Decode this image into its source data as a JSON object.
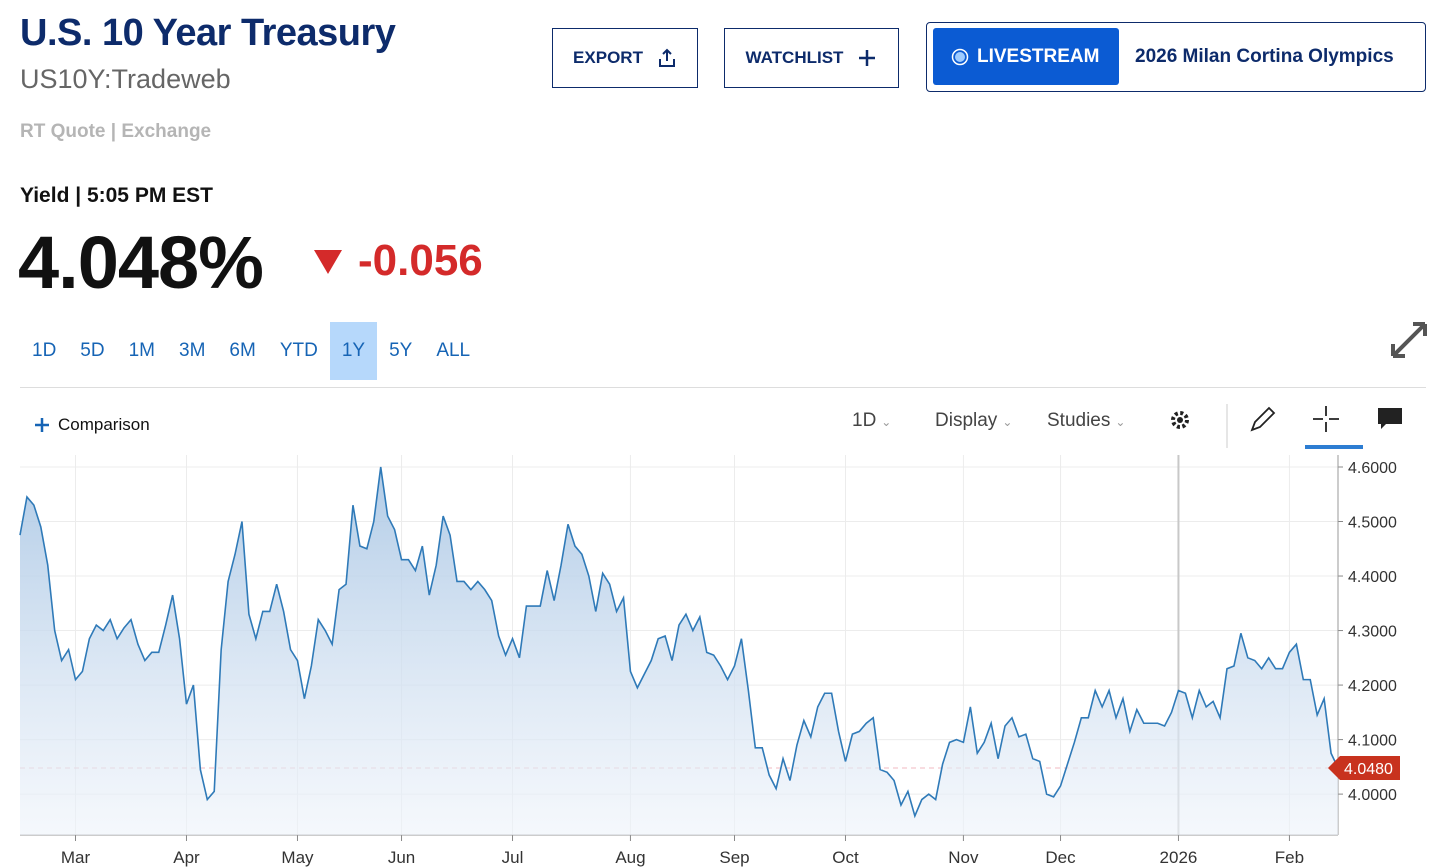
{
  "header": {
    "title": "U.S. 10 Year Treasury",
    "symbol": "US10Y:Tradeweb",
    "quote_source": "RT Quote | Exchange",
    "export": "EXPORT",
    "watchlist": "WATCHLIST",
    "livestream": "LIVESTREAM",
    "livestream_title": "2026 Milan Cortina Olympics"
  },
  "quote": {
    "label": "Yield | 5:05 PM EST",
    "price": "4.048%",
    "change": "-0.056"
  },
  "range_tabs": {
    "items": [
      "1D",
      "5D",
      "1M",
      "3M",
      "6M",
      "YTD",
      "1Y",
      "5Y",
      "ALL"
    ],
    "active_index": 6
  },
  "toolbar": {
    "comparison": "Comparison",
    "interval": "1D",
    "display": "Display",
    "studies": "Studies"
  },
  "chart_data": {
    "type": "area",
    "color": "#2f7ab8",
    "values": [
      4.475,
      4.545,
      4.53,
      4.49,
      4.42,
      4.3,
      4.245,
      4.265,
      4.21,
      4.225,
      4.285,
      4.31,
      4.3,
      4.32,
      4.285,
      4.305,
      4.32,
      4.275,
      4.245,
      4.26,
      4.26,
      4.31,
      4.365,
      4.285,
      4.165,
      4.2,
      4.045,
      3.99,
      4.005,
      4.265,
      4.39,
      4.44,
      4.5,
      4.33,
      4.285,
      4.335,
      4.335,
      4.385,
      4.335,
      4.265,
      4.245,
      4.175,
      4.235,
      4.32,
      4.3,
      4.275,
      4.375,
      4.385,
      4.53,
      4.455,
      4.45,
      4.5,
      4.6,
      4.51,
      4.485,
      4.43,
      4.43,
      4.41,
      4.455,
      4.365,
      4.42,
      4.51,
      4.475,
      4.39,
      4.39,
      4.375,
      4.39,
      4.375,
      4.355,
      4.29,
      4.255,
      4.285,
      4.25,
      4.345,
      4.345,
      4.345,
      4.41,
      4.355,
      4.42,
      4.495,
      4.455,
      4.44,
      4.4,
      4.335,
      4.405,
      4.385,
      4.335,
      4.36,
      4.225,
      4.195,
      4.22,
      4.245,
      4.285,
      4.29,
      4.245,
      4.31,
      4.33,
      4.3,
      4.325,
      4.26,
      4.255,
      4.235,
      4.21,
      4.235,
      4.285,
      4.19,
      4.085,
      4.085,
      4.035,
      4.01,
      4.065,
      4.025,
      4.09,
      4.135,
      4.105,
      4.16,
      4.185,
      4.185,
      4.115,
      4.06,
      4.11,
      4.115,
      4.13,
      4.14,
      4.045,
      4.04,
      4.025,
      3.98,
      4.005,
      3.96,
      3.99,
      4.0,
      3.99,
      4.055,
      4.095,
      4.1,
      4.095,
      4.16,
      4.075,
      4.095,
      4.13,
      4.065,
      4.125,
      4.14,
      4.105,
      4.11,
      4.065,
      4.06,
      4.0,
      3.995,
      4.015,
      4.055,
      4.095,
      4.14,
      4.14,
      4.19,
      4.16,
      4.19,
      4.14,
      4.175,
      4.115,
      4.155,
      4.13,
      4.13,
      4.13,
      4.125,
      4.15,
      4.19,
      4.185,
      4.14,
      4.19,
      4.16,
      4.17,
      4.14,
      4.23,
      4.235,
      4.295,
      4.25,
      4.245,
      4.23,
      4.25,
      4.23,
      4.23,
      4.26,
      4.275,
      4.21,
      4.21,
      4.145,
      4.175,
      4.075,
      4.048
    ],
    "xlim": [
      0,
      190
    ],
    "xticks": [
      {
        "value": 8,
        "label": "Mar"
      },
      {
        "value": 24,
        "label": "Apr"
      },
      {
        "value": 40,
        "label": "May"
      },
      {
        "value": 55,
        "label": "Jun"
      },
      {
        "value": 71,
        "label": "Jul"
      },
      {
        "value": 88,
        "label": "Aug"
      },
      {
        "value": 103,
        "label": "Sep"
      },
      {
        "value": 119,
        "label": "Oct"
      },
      {
        "value": 136,
        "label": "Nov"
      },
      {
        "value": 150,
        "label": "Dec"
      },
      {
        "value": 167,
        "label": "2026"
      },
      {
        "value": 183,
        "label": "Feb"
      }
    ],
    "ylim": [
      3.925,
      4.622
    ],
    "yticks": [
      {
        "value": 4.0,
        "label": "4.0000"
      },
      {
        "value": 4.1,
        "label": "4.1000"
      },
      {
        "value": 4.2,
        "label": "4.2000"
      },
      {
        "value": 4.3,
        "label": "4.3000"
      },
      {
        "value": 4.4,
        "label": "4.4000"
      },
      {
        "value": 4.5,
        "label": "4.5000"
      },
      {
        "value": 4.6,
        "label": "4.6000"
      }
    ],
    "grid": true,
    "last_value": {
      "value": 4.048,
      "label": "4.0480"
    }
  }
}
